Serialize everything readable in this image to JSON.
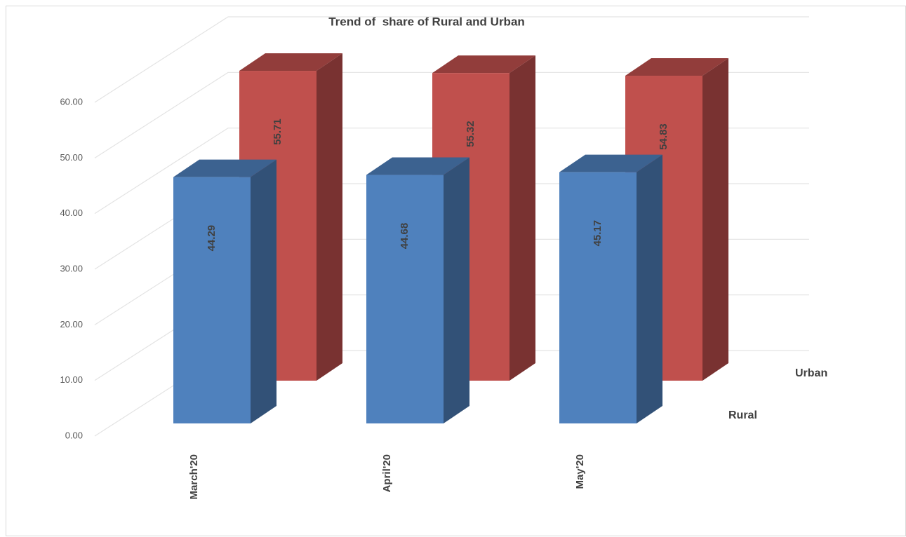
{
  "chart_data": {
    "type": "bar3d",
    "title": "Trend of  share of Rural and Urban",
    "categories": [
      "March'20",
      "April'20",
      "May'20"
    ],
    "series": [
      {
        "name": "Rural",
        "color": "#4f81bd",
        "values": [
          44.29,
          44.68,
          45.17
        ]
      },
      {
        "name": "Urban",
        "color": "#c0504d",
        "values": [
          55.71,
          55.32,
          54.83
        ]
      }
    ],
    "ylim": [
      0,
      60
    ],
    "yticks": [
      {
        "value": 0,
        "label": "0.00"
      },
      {
        "value": 10,
        "label": "10.00"
      },
      {
        "value": 20,
        "label": "20.00"
      },
      {
        "value": 30,
        "label": "30.00"
      },
      {
        "value": 40,
        "label": "40.00"
      },
      {
        "value": 50,
        "label": "50.00"
      },
      {
        "value": 60,
        "label": "60.00"
      }
    ],
    "grid": true
  }
}
